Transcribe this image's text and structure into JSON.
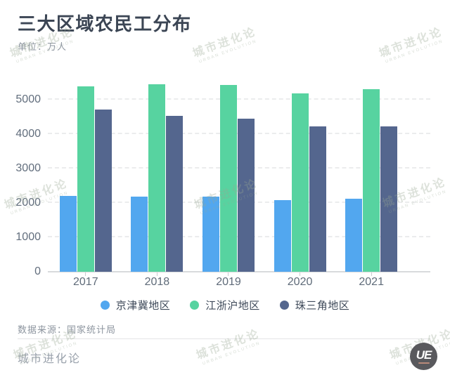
{
  "header": {
    "title": "三大区域农民工分布",
    "unit_label": "单位：万人"
  },
  "chart_data": {
    "type": "bar",
    "title": "三大区域农民工分布",
    "unit": "万人",
    "categories": [
      "2017",
      "2018",
      "2019",
      "2020",
      "2021"
    ],
    "series": [
      {
        "name": "京津冀地区",
        "color": "#52a7ef",
        "values": [
          2215,
          2188,
          2190,
          2076,
          2134
        ]
      },
      {
        "name": "江浙沪地区",
        "color": "#57d3a0",
        "values": [
          5387,
          5452,
          5441,
          5179,
          5303
        ]
      },
      {
        "name": "珠三角地区",
        "color": "#54668e",
        "values": [
          4722,
          4536,
          4448,
          4223,
          4219
        ]
      }
    ],
    "yticks": [
      0,
      1000,
      2000,
      3000,
      4000,
      5000
    ],
    "ylim": [
      0,
      5800
    ],
    "xlabel": "",
    "ylabel": "",
    "grid": true,
    "legend_position": "bottom"
  },
  "footer": {
    "source": "数据来源：国家统计局",
    "brand": "城市进化论",
    "logo_text": "UE"
  },
  "watermark": {
    "line1": "城市进化论",
    "line2": "URBAN EVOLUTION"
  }
}
